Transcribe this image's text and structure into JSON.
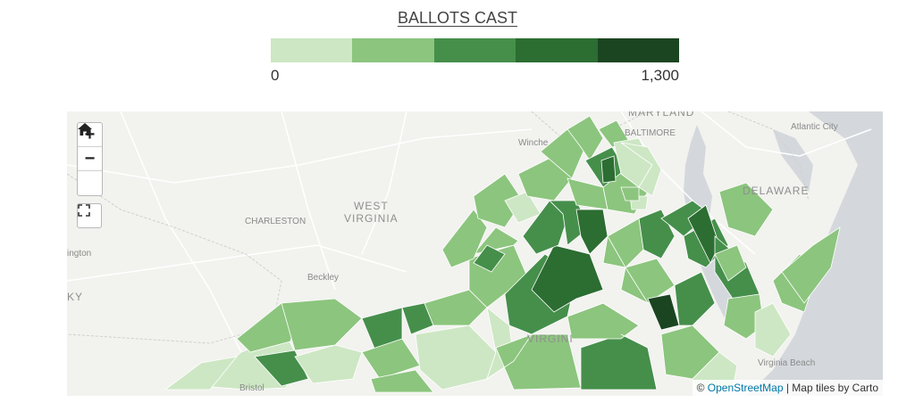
{
  "legend": {
    "title": "BALLOTS CAST",
    "min_label": "0",
    "max_label": "1,300",
    "colors": [
      "#cde7c4",
      "#8cc57e",
      "#458f4b",
      "#2c6d31",
      "#1b4520"
    ]
  },
  "controls": {
    "zoom_in": "+",
    "zoom_out": "−",
    "home_icon": "home-icon",
    "fullscreen_icon": "fullscreen-icon"
  },
  "attribution": {
    "prefix": "©",
    "link_text": "OpenStreetMap",
    "suffix": "| Map tiles by Carto"
  },
  "places": {
    "maryland": "MARYLAND",
    "baltimore": "BALTIMORE",
    "atlantic_city": "Atlantic City",
    "winchester": "Winche",
    "delaware": "DELAWARE",
    "west_virginia_1": "WEST",
    "west_virginia_2": "VIRGINIA",
    "charleston": "CHARLESTON",
    "beckley": "Beckley",
    "virginia_beach": "Virginia Beach",
    "ington": "ington",
    "ky": "KY",
    "virginia": "VIRGINI",
    "bristol": "Bristol"
  },
  "map": {
    "land_color": "#f2f2ef",
    "water_color": "#d4d8dc",
    "road_color": "#ffffff",
    "border_color": "#d6d6d6"
  }
}
